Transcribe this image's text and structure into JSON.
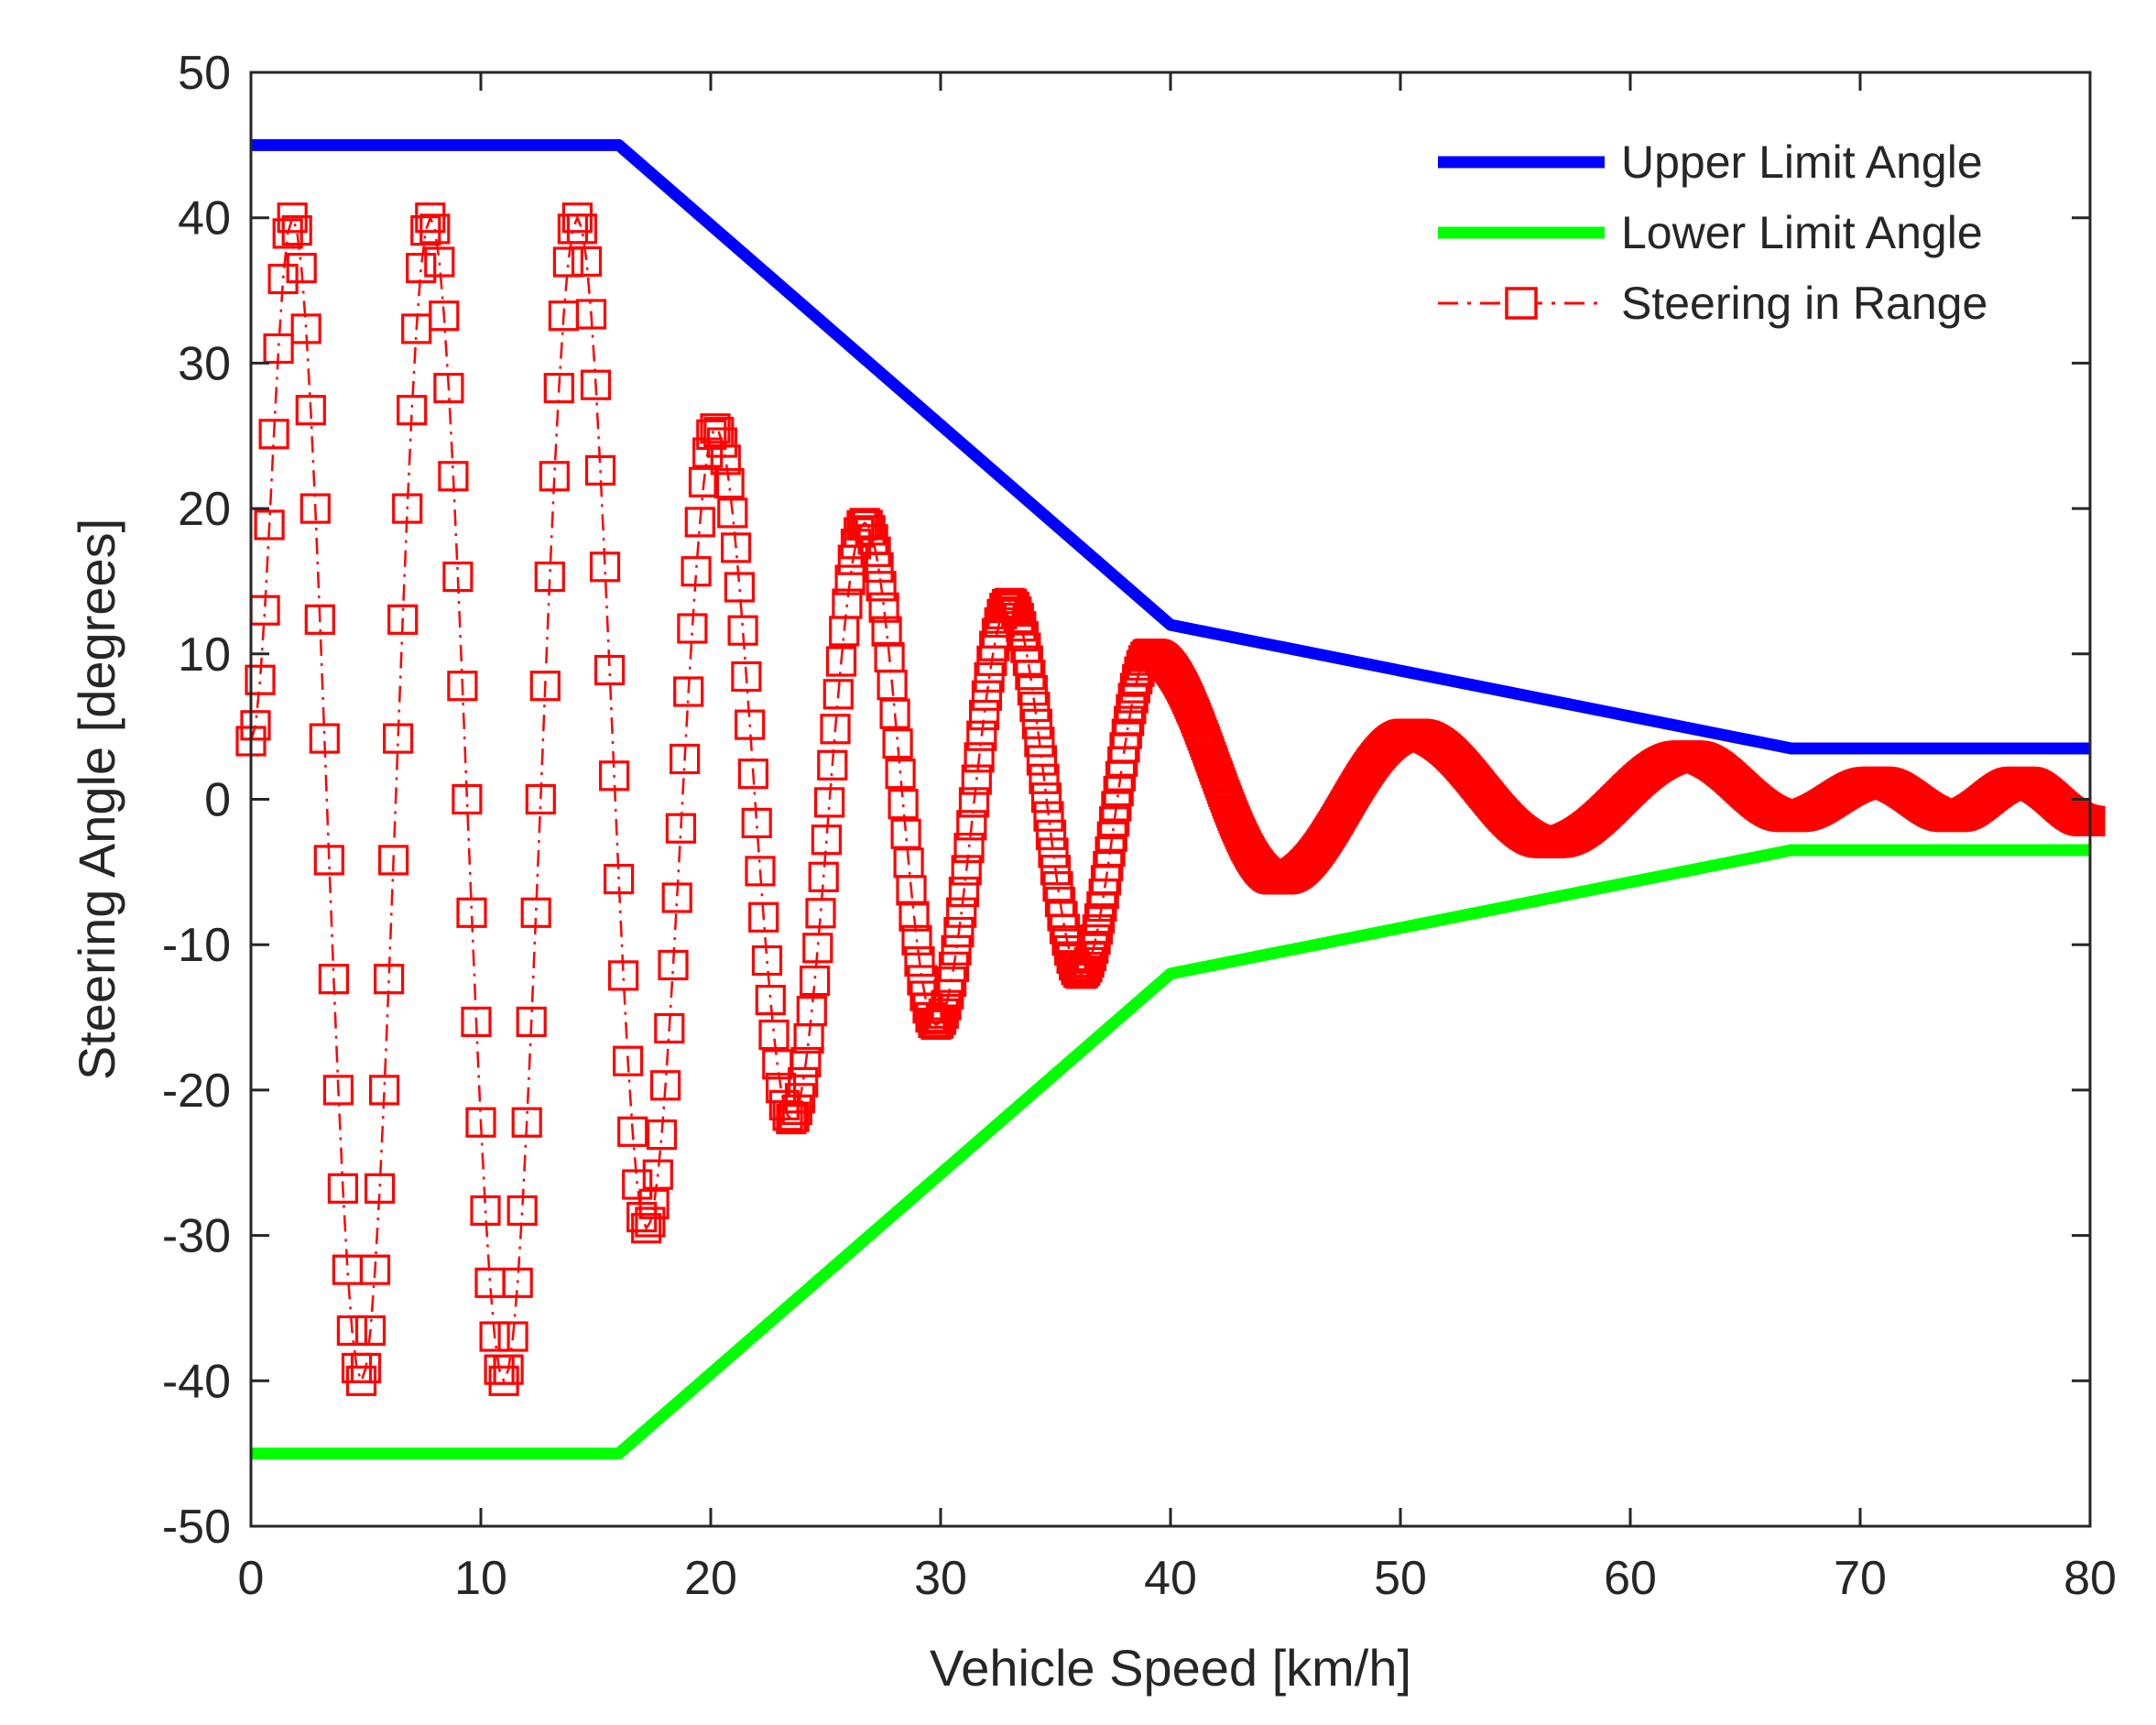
{
  "chart_data": {
    "type": "line",
    "title": "",
    "xlabel": "Vehicle Speed [km/h]",
    "ylabel": "Steering Angle [degrees]",
    "xlim": [
      0,
      80
    ],
    "ylim": [
      -50,
      50
    ],
    "grid": false,
    "legend_position": "top-right",
    "xticks": [
      0,
      10,
      20,
      30,
      40,
      50,
      60,
      70,
      80
    ],
    "xtick_labels": [
      "0",
      "10",
      "20",
      "30",
      "40",
      "50",
      "60",
      "70",
      "80"
    ],
    "yticks": [
      -50,
      -40,
      -30,
      -20,
      -10,
      0,
      10,
      20,
      30,
      40,
      50
    ],
    "ytick_labels": [
      "-50",
      "-40",
      "-30",
      "-20",
      "-10",
      "0",
      "10",
      "20",
      "30",
      "40",
      "50"
    ],
    "series": [
      {
        "name": "Upper Limit Angle",
        "color": "#0000ff",
        "style": "solid",
        "marker": "none",
        "x": [
          0,
          16,
          40,
          67,
          80
        ],
        "y": [
          45,
          45,
          12,
          3.5,
          3.5
        ]
      },
      {
        "name": "Lower Limit Angle",
        "color": "#00ff00",
        "style": "solid",
        "marker": "none",
        "x": [
          0,
          16,
          40,
          67,
          80
        ],
        "y": [
          -45,
          -45,
          -12,
          -3.5,
          -3.5
        ]
      },
      {
        "name": "Steering in Range",
        "color": "#ff0000",
        "style": "dash-dot",
        "marker": "square",
        "x": [
          0,
          1.8,
          4.8,
          7.8,
          11,
          14.2,
          17.2,
          20.2,
          23.5,
          26.7,
          29.8,
          33,
          36.1,
          39.1,
          44.7,
          50.5,
          56.5,
          62.5,
          67,
          70.7,
          74,
          77,
          80
        ],
        "y": [
          4,
          40,
          -40,
          40,
          -40,
          40,
          -29.5,
          25.5,
          -22,
          19,
          -15.5,
          13.5,
          -12,
          10,
          -5.5,
          4.5,
          -3,
          3,
          -1.2,
          1.2,
          -1.2,
          1.2,
          -1.5
        ],
        "sample_spacing_x": [
          0.2,
          0.2,
          0.2,
          0.2,
          0.2,
          0.2,
          0.17,
          0.15,
          0.13,
          0.12,
          0.11,
          0.1,
          0.09,
          0.05,
          0.05,
          0.05,
          0.05,
          0.05,
          0.05,
          0.05,
          0.05,
          0.05
        ]
      }
    ]
  }
}
